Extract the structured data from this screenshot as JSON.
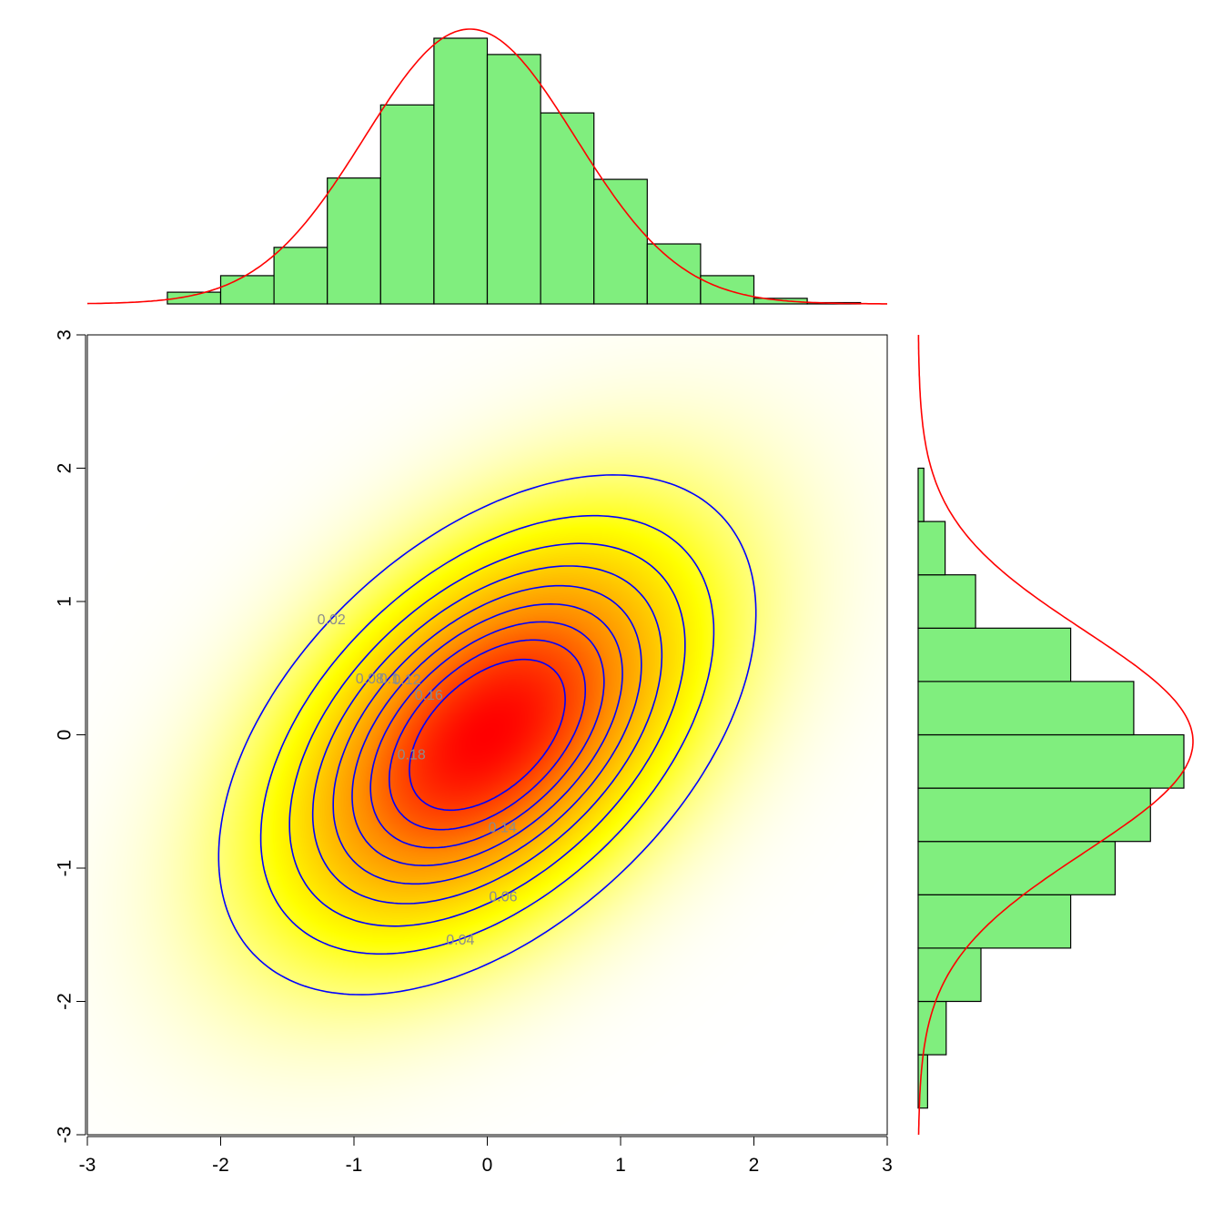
{
  "chart_data": [
    {
      "panel": "main",
      "type": "heatmap",
      "title": "",
      "xlabel": "",
      "ylabel": "",
      "xlim": [
        -3,
        3
      ],
      "ylim": [
        -3,
        3
      ],
      "x_ticks": [
        "-3",
        "-2",
        "-1",
        "0",
        "1",
        "2",
        "3"
      ],
      "y_ticks": [
        "-3",
        "-2",
        "-1",
        "0",
        "1",
        "2",
        "3"
      ],
      "density": {
        "mean": [
          0,
          0
        ],
        "sd_x": 0.92,
        "sd_y": 0.89,
        "rho": 0.47,
        "colors": [
          "#ffffff",
          "#ffff00",
          "#ff8c00",
          "#ff0000"
        ]
      },
      "contours": {
        "levels": [
          0.02,
          0.04,
          0.06,
          0.08,
          0.1,
          0.12,
          0.14,
          0.16,
          0.18
        ],
        "labels": [
          "0.02",
          "0.04",
          "0.06",
          "0.08",
          "0.1",
          "0.12",
          "0.14",
          "0.16",
          "0.18"
        ],
        "line_color": "#0000ff"
      }
    },
    {
      "panel": "top-histogram",
      "type": "bar",
      "bin_edges": [
        -2.8,
        -2.4,
        -2.0,
        -1.6,
        -1.2,
        -0.8,
        -0.4,
        0.0,
        0.4,
        0.8,
        1.2,
        1.6,
        2.0,
        2.4,
        2.8
      ],
      "values": [
        0.0,
        0.044,
        0.106,
        0.212,
        0.472,
        0.746,
        0.996,
        0.935,
        0.716,
        0.467,
        0.225,
        0.106,
        0.021,
        0.005
      ],
      "bar_color": "#80ee7e",
      "curve": {
        "type": "normal-density",
        "mean": -0.13,
        "sd": 0.79,
        "color": "#ff0000"
      }
    },
    {
      "panel": "right-histogram",
      "type": "bar",
      "orientation": "horizontal",
      "bin_edges": [
        -2.8,
        -2.4,
        -2.0,
        -1.6,
        -1.2,
        -0.8,
        -0.4,
        0.0,
        0.4,
        0.8,
        1.2,
        1.6,
        2.0,
        2.4,
        2.8
      ],
      "values": [
        0.035,
        0.104,
        0.233,
        0.566,
        0.731,
        0.862,
        0.986,
        0.8,
        0.566,
        0.213,
        0.1,
        0.021,
        0.0,
        0.0
      ],
      "bar_color": "#80ee7e",
      "curve": {
        "type": "normal-density",
        "mean": -0.05,
        "sd": 0.83,
        "color": "#ff0000"
      }
    }
  ]
}
